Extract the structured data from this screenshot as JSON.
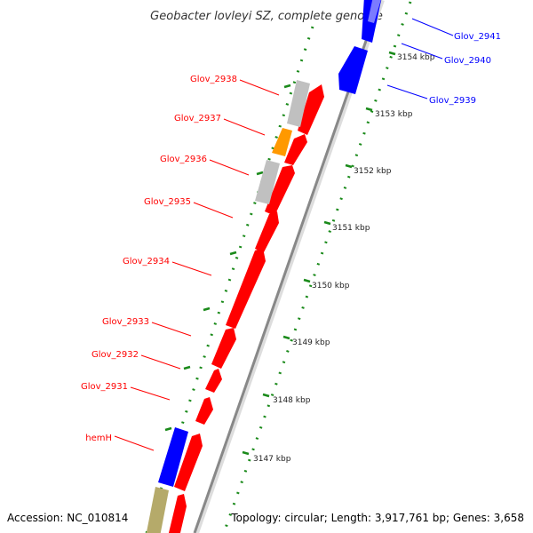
{
  "title": "Geobacter lovleyi SZ, complete genome",
  "footer": {
    "accession": "Accession: NC_010814",
    "summary": "Topology: circular; Length: 3,917,761 bp; Genes: 3,658"
  },
  "colors": {
    "forward_strand": "#ff0000",
    "reverse_strand": "#0000ff",
    "other_feature": "#c0c0c0",
    "orange_feature": "#ff9900",
    "olive_feature": "#b5aa6a",
    "backbone": "#888888",
    "scale_ticks": "#1a8a1a"
  },
  "scale": {
    "unit": "kbp",
    "ticks": [
      {
        "label": "3147 kbp",
        "kbp": 3147
      },
      {
        "label": "3148 kbp",
        "kbp": 3148
      },
      {
        "label": "3149 kbp",
        "kbp": 3149
      },
      {
        "label": "3150 kbp",
        "kbp": 3150
      },
      {
        "label": "3151 kbp",
        "kbp": 3151
      },
      {
        "label": "3152 kbp",
        "kbp": 3152
      },
      {
        "label": "3153 kbp",
        "kbp": 3153
      },
      {
        "label": "3154 kbp",
        "kbp": 3154
      }
    ]
  },
  "genes": [
    {
      "label": "Glov_2941",
      "strand": "reverse"
    },
    {
      "label": "Glov_2940",
      "strand": "reverse"
    },
    {
      "label": "Glov_2939",
      "strand": "reverse"
    },
    {
      "label": "Glov_2938",
      "strand": "forward"
    },
    {
      "label": "Glov_2937",
      "strand": "forward"
    },
    {
      "label": "Glov_2936",
      "strand": "forward"
    },
    {
      "label": "Glov_2935",
      "strand": "forward"
    },
    {
      "label": "Glov_2934",
      "strand": "forward"
    },
    {
      "label": "Glov_2933",
      "strand": "forward"
    },
    {
      "label": "Glov_2932",
      "strand": "forward"
    },
    {
      "label": "Glov_2931",
      "strand": "forward"
    },
    {
      "label": "hemH",
      "strand": "reverse"
    }
  ]
}
